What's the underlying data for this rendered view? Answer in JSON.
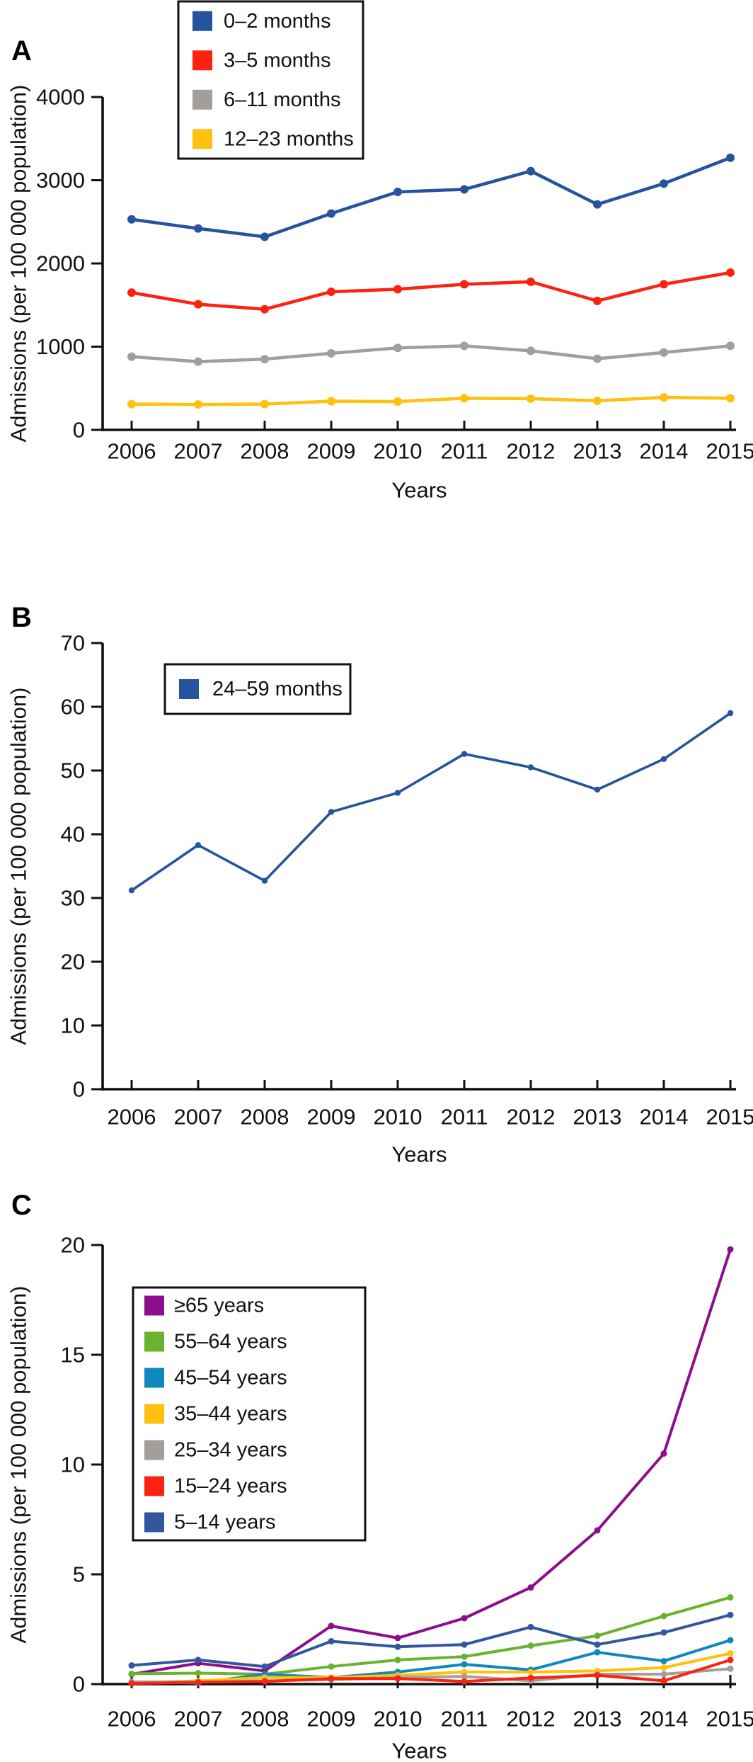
{
  "figure": {
    "xlabel": "Years",
    "ylabel": "Admissions (per 100 000 population)"
  },
  "chart_data": [
    {
      "type": "line",
      "panel_label": "A",
      "x": [
        2006,
        2007,
        2008,
        2009,
        2010,
        2011,
        2012,
        2013,
        2014,
        2015
      ],
      "xlabel": "Years",
      "ylabel": "Admissions (per 100 000 population)",
      "ylim": [
        0,
        4000
      ],
      "yticks": [
        0,
        1000,
        2000,
        3000,
        4000
      ],
      "grid": false,
      "legend_position": "top-inside-left",
      "series": [
        {
          "name": "0–2 months",
          "color": "#26549C",
          "values": [
            2530,
            2420,
            2320,
            2600,
            2860,
            2890,
            3110,
            2710,
            2960,
            3270
          ]
        },
        {
          "name": "3–5 months",
          "color": "#FB2310",
          "values": [
            1650,
            1510,
            1450,
            1660,
            1690,
            1750,
            1780,
            1550,
            1750,
            1890
          ]
        },
        {
          "name": "6–11 months",
          "color": "#A49E9A",
          "values": [
            880,
            820,
            850,
            920,
            985,
            1010,
            950,
            855,
            930,
            1010
          ]
        },
        {
          "name": "12–23 months",
          "color": "#FEC10D",
          "values": [
            310,
            305,
            310,
            345,
            340,
            380,
            375,
            350,
            390,
            380
          ]
        }
      ]
    },
    {
      "type": "line",
      "panel_label": "B",
      "x": [
        2006,
        2007,
        2008,
        2009,
        2010,
        2011,
        2012,
        2013,
        2014,
        2015
      ],
      "xlabel": "Years",
      "ylabel": "Admissions (per 100 000 population)",
      "ylim": [
        0,
        70
      ],
      "yticks": [
        0,
        10,
        20,
        30,
        40,
        50,
        60,
        70
      ],
      "grid": false,
      "legend_position": "top-inside-left",
      "series": [
        {
          "name": "24–59 months",
          "color": "#26549C",
          "values": [
            31.2,
            38.3,
            32.7,
            43.5,
            46.5,
            52.6,
            50.5,
            47.0,
            51.8,
            59.0
          ]
        }
      ]
    },
    {
      "type": "line",
      "panel_label": "C",
      "x": [
        2006,
        2007,
        2008,
        2009,
        2010,
        2011,
        2012,
        2013,
        2014,
        2015
      ],
      "xlabel": "Years",
      "ylabel": "Admissions (per 100 000 population)",
      "ylim": [
        0,
        20
      ],
      "yticks": [
        0,
        5,
        10,
        15,
        20
      ],
      "grid": false,
      "legend_position": "upper-middle-inside",
      "series": [
        {
          "name": "≥65 years",
          "color": "#8B0F8C",
          "values": [
            0.45,
            0.95,
            0.6,
            2.65,
            2.1,
            3.0,
            4.4,
            7.0,
            10.5,
            19.8
          ]
        },
        {
          "name": "55–64 years",
          "color": "#69B32E",
          "values": [
            0.47,
            0.5,
            0.45,
            0.8,
            1.1,
            1.25,
            1.75,
            2.2,
            3.1,
            3.95
          ]
        },
        {
          "name": "45–54 years",
          "color": "#0F88BE",
          "values": [
            0.1,
            0.05,
            0.45,
            0.3,
            0.55,
            0.9,
            0.65,
            1.45,
            1.05,
            2.0
          ]
        },
        {
          "name": "35–44 years",
          "color": "#FEC10D",
          "values": [
            0.05,
            0.15,
            0.3,
            0.3,
            0.4,
            0.55,
            0.55,
            0.6,
            0.75,
            1.4
          ]
        },
        {
          "name": "25–34 years",
          "color": "#A49E9A",
          "values": [
            0.1,
            0.1,
            0.15,
            0.2,
            0.3,
            0.35,
            0.15,
            0.45,
            0.45,
            0.7
          ]
        },
        {
          "name": "15–24 years",
          "color": "#FB2310",
          "values": [
            0.03,
            0.08,
            0.12,
            0.25,
            0.25,
            0.12,
            0.28,
            0.4,
            0.15,
            1.1
          ]
        },
        {
          "name": "5–14 years",
          "color": "#33579F",
          "values": [
            0.85,
            1.1,
            0.8,
            1.95,
            1.7,
            1.8,
            2.6,
            1.8,
            2.35,
            3.15
          ]
        }
      ]
    }
  ]
}
